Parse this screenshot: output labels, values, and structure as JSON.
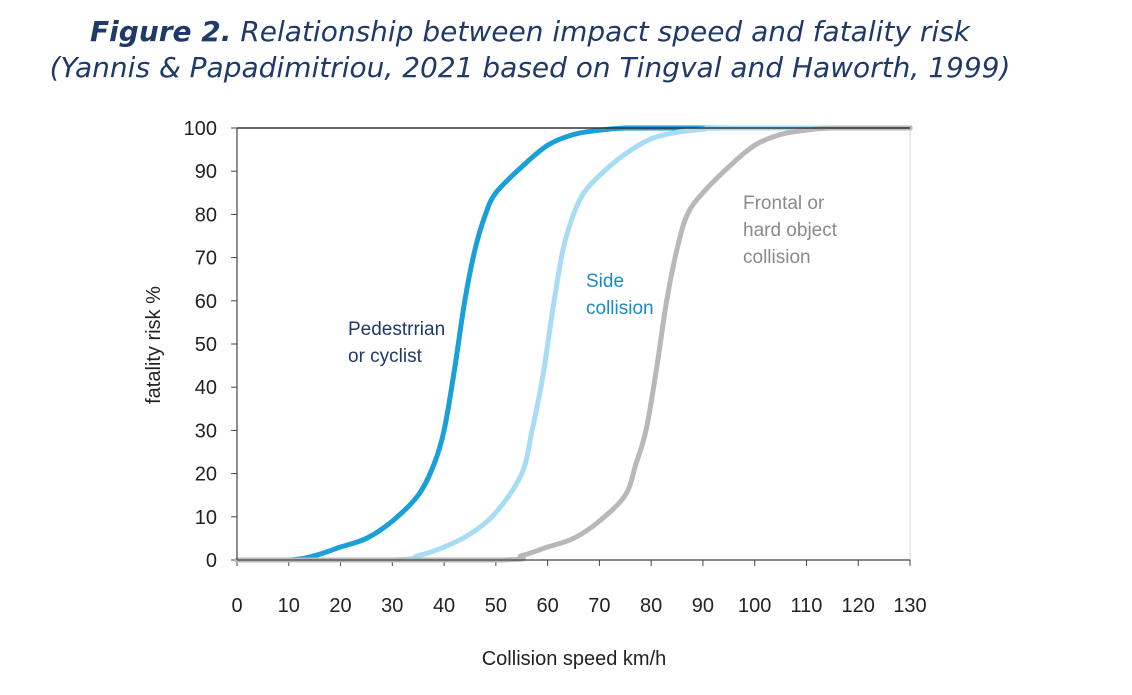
{
  "figure": {
    "label": "Figure 2.",
    "caption_line1": "Relationship between impact speed and fatality risk",
    "caption_line2": "(Yannis & Papadimitriou, 2021 based on Tingval and Haworth, 1999)"
  },
  "chart_data": {
    "type": "line",
    "xlabel": "Collision speed km/h",
    "ylabel": "fatality risk %",
    "xlim": [
      0,
      130
    ],
    "ylim": [
      0,
      100
    ],
    "xticks": [
      0,
      10,
      20,
      30,
      40,
      50,
      60,
      70,
      80,
      90,
      100,
      110,
      120,
      130
    ],
    "yticks": [
      0,
      10,
      20,
      30,
      40,
      50,
      60,
      70,
      80,
      90,
      100
    ],
    "grid": false,
    "series": [
      {
        "name": "Pedestrrian or cyclist",
        "label_lines": [
          "Pedestrrian",
          "or cyclist"
        ],
        "color": "#1aa0d8",
        "x": [
          0,
          10,
          15,
          20,
          25,
          30,
          35,
          38,
          40,
          42,
          44,
          46,
          48,
          50,
          55,
          60,
          65,
          70,
          75,
          80,
          130
        ],
        "y": [
          0,
          0,
          1,
          3,
          5,
          9,
          15,
          22,
          30,
          44,
          60,
          72,
          80,
          85,
          91,
          96,
          98.5,
          99.5,
          100,
          100,
          100
        ]
      },
      {
        "name": "Side collision",
        "label_lines": [
          "Side",
          "collision"
        ],
        "color": "#a8dcf5",
        "x": [
          0,
          30,
          35,
          40,
          45,
          50,
          55,
          57,
          59,
          61,
          63,
          65,
          67,
          70,
          75,
          80,
          85,
          90,
          95,
          130
        ],
        "y": [
          0,
          0,
          1,
          3,
          6,
          11,
          20,
          30,
          42,
          58,
          72,
          80,
          85,
          89,
          94,
          97.5,
          99,
          99.7,
          100,
          100
        ]
      },
      {
        "name": "Frontal or hard object collision",
        "label_lines": [
          "Frontal or",
          "hard object",
          "collision"
        ],
        "color": "#b8b8b8",
        "x": [
          0,
          50,
          55,
          60,
          65,
          70,
          75,
          77,
          79,
          81,
          83,
          85,
          87,
          90,
          95,
          100,
          105,
          110,
          115,
          130
        ],
        "y": [
          0,
          0,
          1,
          3,
          5,
          9,
          15,
          22,
          30,
          44,
          60,
          72,
          80,
          85,
          91,
          96,
          98.5,
          99.5,
          100,
          100
        ]
      }
    ]
  }
}
